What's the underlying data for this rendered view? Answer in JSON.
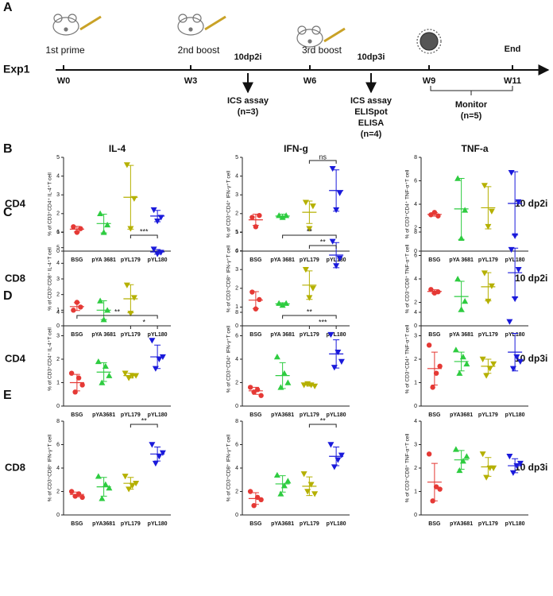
{
  "panels": [
    "A",
    "B",
    "C",
    "D",
    "E"
  ],
  "timeline": {
    "label": "Exp1",
    "weeks": [
      "W0",
      "W3",
      "W6",
      "W9",
      "W11"
    ],
    "doses": [
      "1st prime",
      "2nd boost",
      "3rd boost"
    ],
    "events": [
      "10dp2i",
      "10dp3i",
      "End"
    ],
    "assay1": [
      "ICS assay",
      "(n=3)"
    ],
    "assay2": [
      "ICS assay",
      "ELISpot",
      "ELISA",
      "(n=4)"
    ],
    "monitor": [
      "Monitor",
      "(n=5)"
    ]
  },
  "columns": [
    "IL-4",
    "IFN-g",
    "TNF-a"
  ],
  "rows": [
    {
      "label": "CD4",
      "time": "10 dp2i"
    },
    {
      "label": "CD8",
      "time": "10 dp2i"
    },
    {
      "label": "CD4",
      "time": "10 dp3i"
    },
    {
      "label": "CD8",
      "time": "10 dp3i"
    }
  ],
  "chart_data": [
    {
      "type": "dot",
      "ylabel": "% of CD3⁺CD4⁺ IL-4⁺T cell",
      "ylim": [
        0,
        5
      ],
      "yticks": [
        0,
        1,
        2,
        3,
        4,
        5
      ],
      "significance": [],
      "groups": [
        {
          "name": "BSG",
          "color": "#e53935",
          "marker": "circle",
          "values": [
            1.3,
            1.0,
            1.2
          ],
          "mean": 1.17,
          "sd": 0.15
        },
        {
          "name": "pYA 3681",
          "color": "#2ecc40",
          "marker": "up",
          "values": [
            2.0,
            1.0,
            1.4
          ],
          "mean": 1.47,
          "sd": 0.5
        },
        {
          "name": "pYL179",
          "color": "#b5b000",
          "marker": "down",
          "values": [
            4.6,
            1.2,
            2.8
          ],
          "mean": 2.87,
          "sd": 1.7
        },
        {
          "name": "pYL180",
          "color": "#1a1adb",
          "marker": "down",
          "values": [
            2.2,
            1.6,
            1.8
          ],
          "mean": 1.87,
          "sd": 0.3
        }
      ]
    },
    {
      "type": "dot",
      "ylabel": "% of CD3⁺CD4⁺ IFN-γ⁺T cell",
      "ylim": [
        0,
        5
      ],
      "yticks": [
        0,
        1,
        2,
        3,
        4,
        5
      ],
      "significance": [
        {
          "from": 2,
          "to": 3,
          "label": "ns"
        }
      ],
      "groups": [
        {
          "name": "BSG",
          "color": "#e53935",
          "marker": "circle",
          "values": [
            1.8,
            1.3,
            1.9
          ],
          "mean": 1.67,
          "sd": 0.3
        },
        {
          "name": "pYA 3681",
          "color": "#2ecc40",
          "marker": "up",
          "values": [
            1.9,
            1.8,
            1.9
          ],
          "mean": 1.87,
          "sd": 0.1
        },
        {
          "name": "pYL179",
          "color": "#b5b000",
          "marker": "down",
          "values": [
            2.6,
            1.2,
            2.4
          ],
          "mean": 2.07,
          "sd": 0.6
        },
        {
          "name": "pYL180",
          "color": "#1a1adb",
          "marker": "down",
          "values": [
            4.4,
            2.2,
            3.1
          ],
          "mean": 3.23,
          "sd": 1.1
        }
      ]
    },
    {
      "type": "dot",
      "ylabel": "% of CD3⁺CD4⁺ TNF-α⁺T cell",
      "ylim": [
        0,
        8
      ],
      "yticks": [
        0,
        2,
        4,
        6,
        8
      ],
      "significance": [],
      "groups": [
        {
          "name": "BSG",
          "color": "#e53935",
          "marker": "circle",
          "values": [
            3.1,
            3.3,
            3.0
          ],
          "mean": 3.13,
          "sd": 0.15
        },
        {
          "name": "pYA 3681",
          "color": "#2ecc40",
          "marker": "up",
          "values": [
            6.2,
            1.1,
            3.5
          ],
          "mean": 3.6,
          "sd": 2.6
        },
        {
          "name": "pYL179",
          "color": "#b5b000",
          "marker": "down",
          "values": [
            5.6,
            2.1,
            3.4
          ],
          "mean": 3.7,
          "sd": 1.8
        },
        {
          "name": "pYL180",
          "color": "#1a1adb",
          "marker": "down",
          "values": [
            6.7,
            1.3,
            4.2
          ],
          "mean": 4.07,
          "sd": 2.7
        }
      ]
    },
    {
      "type": "dot",
      "ylabel": "% of CD3⁺CD8⁺ IL-4⁺T cell",
      "ylim": [
        0,
        6
      ],
      "yticks": [
        0,
        1,
        2,
        3,
        4,
        5,
        6
      ],
      "significance": [
        {
          "from": 2,
          "to": 3,
          "label": "***"
        }
      ],
      "groups": [
        {
          "name": "BSG",
          "color": "#e53935",
          "marker": "circle",
          "values": [
            1.0,
            1.5,
            1.2
          ],
          "mean": 1.23,
          "sd": 0.25
        },
        {
          "name": "pYA 3681",
          "color": "#2ecc40",
          "marker": "up",
          "values": [
            1.6,
            0.4,
            1.0
          ],
          "mean": 1.0,
          "sd": 0.6
        },
        {
          "name": "pYL179",
          "color": "#b5b000",
          "marker": "down",
          "values": [
            2.6,
            0.8,
            1.8
          ],
          "mean": 1.73,
          "sd": 0.9
        },
        {
          "name": "pYL180",
          "color": "#1a1adb",
          "marker": "down",
          "values": [
            4.9,
            4.6,
            4.7
          ],
          "mean": 4.73,
          "sd": 0.15
        }
      ]
    },
    {
      "type": "dot",
      "ylabel": "% of CD3⁺CD8⁺ IFN-γ⁺T cell",
      "ylim": [
        0,
        5
      ],
      "yticks": [
        0,
        1,
        2,
        3,
        4,
        5
      ],
      "significance": [
        {
          "from": 1,
          "to": 3,
          "label": "**"
        },
        {
          "from": 2,
          "to": 3,
          "label": "**"
        }
      ],
      "groups": [
        {
          "name": "BSG",
          "color": "#e53935",
          "marker": "circle",
          "values": [
            1.8,
            0.9,
            1.4
          ],
          "mean": 1.37,
          "sd": 0.45
        },
        {
          "name": "pYA 3681",
          "color": "#2ecc40",
          "marker": "up",
          "values": [
            1.2,
            1.1,
            1.2
          ],
          "mean": 1.17,
          "sd": 0.06
        },
        {
          "name": "pYL179",
          "color": "#b5b000",
          "marker": "down",
          "values": [
            3.0,
            1.5,
            2.0
          ],
          "mean": 2.17,
          "sd": 0.76
        },
        {
          "name": "pYL180",
          "color": "#1a1adb",
          "marker": "down",
          "values": [
            4.5,
            3.2,
            3.6
          ],
          "mean": 3.77,
          "sd": 0.67
        }
      ]
    },
    {
      "type": "dot",
      "ylabel": "% of CD3⁺CD8⁺ TNF-α⁺T cell",
      "ylim": [
        0,
        8
      ],
      "yticks": [
        0,
        2,
        4,
        6,
        8
      ],
      "significance": [],
      "groups": [
        {
          "name": "BSG",
          "color": "#e53935",
          "marker": "circle",
          "values": [
            3.1,
            2.8,
            2.9
          ],
          "mean": 2.93,
          "sd": 0.15
        },
        {
          "name": "pYA 3681",
          "color": "#2ecc40",
          "marker": "up",
          "values": [
            4.0,
            1.4,
            2.1
          ],
          "mean": 2.5,
          "sd": 1.3
        },
        {
          "name": "pYL179",
          "color": "#b5b000",
          "marker": "down",
          "values": [
            4.5,
            2.1,
            3.4
          ],
          "mean": 3.33,
          "sd": 1.2
        },
        {
          "name": "pYL180",
          "color": "#1a1adb",
          "marker": "down",
          "values": [
            6.5,
            2.3,
            4.8
          ],
          "mean": 4.53,
          "sd": 2.1
        }
      ]
    },
    {
      "type": "dot",
      "ylabel": "% of CD3⁺CD4⁺ IL-4⁺T cell",
      "ylim": [
        0,
        4
      ],
      "yticks": [
        0,
        1,
        2,
        3,
        4
      ],
      "significance": [
        {
          "from": 0,
          "to": 3,
          "label": "**"
        },
        {
          "from": 2,
          "to": 3,
          "label": "*"
        }
      ],
      "groups": [
        {
          "name": "BSG",
          "color": "#e53935",
          "marker": "circle",
          "values": [
            1.4,
            0.6,
            1.2,
            0.9
          ],
          "mean": 1.0,
          "sd": 0.35
        },
        {
          "name": "pYA3681",
          "color": "#2ecc40",
          "marker": "up",
          "values": [
            1.9,
            1.0,
            1.7,
            1.3
          ],
          "mean": 1.45,
          "sd": 0.4
        },
        {
          "name": "pYL179",
          "color": "#b5b000",
          "marker": "down",
          "values": [
            1.4,
            1.2,
            1.3,
            1.3
          ],
          "mean": 1.3,
          "sd": 0.1
        },
        {
          "name": "pYL180",
          "color": "#1a1adb",
          "marker": "down",
          "values": [
            2.8,
            1.6,
            2.0,
            2.1
          ],
          "mean": 2.1,
          "sd": 0.5
        }
      ]
    },
    {
      "type": "dot",
      "ylabel": "% of CD3⁺CD4⁺ IFN-γ⁺T cell",
      "ylim": [
        0,
        8
      ],
      "yticks": [
        0,
        2,
        4,
        6,
        8
      ],
      "significance": [
        {
          "from": 1,
          "to": 3,
          "label": "**"
        },
        {
          "from": 2,
          "to": 3,
          "label": "***"
        }
      ],
      "groups": [
        {
          "name": "BSG",
          "color": "#e53935",
          "marker": "circle",
          "values": [
            1.6,
            1.2,
            1.4,
            0.9
          ],
          "mean": 1.3,
          "sd": 0.3
        },
        {
          "name": "pYA3681",
          "color": "#2ecc40",
          "marker": "up",
          "values": [
            4.2,
            1.6,
            2.8,
            2.0
          ],
          "mean": 2.6,
          "sd": 1.1
        },
        {
          "name": "pYL179",
          "color": "#b5b000",
          "marker": "down",
          "values": [
            1.8,
            1.9,
            1.8,
            1.7
          ],
          "mean": 1.8,
          "sd": 0.1
        },
        {
          "name": "pYL180",
          "color": "#1a1adb",
          "marker": "down",
          "values": [
            6.1,
            3.3,
            4.6,
            3.8
          ],
          "mean": 4.45,
          "sd": 1.2
        }
      ]
    },
    {
      "type": "dot",
      "ylabel": "% of CD3⁺CD4⁺ TNF-α⁺T cell",
      "ylim": [
        0,
        4
      ],
      "yticks": [
        0,
        1,
        2,
        3,
        4
      ],
      "significance": [],
      "groups": [
        {
          "name": "BSG",
          "color": "#e53935",
          "marker": "circle",
          "values": [
            2.6,
            0.8,
            1.4,
            1.7
          ],
          "mean": 1.6,
          "sd": 0.7
        },
        {
          "name": "pYA3681",
          "color": "#2ecc40",
          "marker": "up",
          "values": [
            2.4,
            1.4,
            2.1,
            1.8
          ],
          "mean": 1.9,
          "sd": 0.4
        },
        {
          "name": "pYL179",
          "color": "#b5b000",
          "marker": "down",
          "values": [
            2.0,
            1.3,
            1.6,
            1.8
          ],
          "mean": 1.7,
          "sd": 0.3
        },
        {
          "name": "pYL180",
          "color": "#1a1adb",
          "marker": "down",
          "values": [
            3.6,
            1.6,
            2.1,
            1.9
          ],
          "mean": 2.3,
          "sd": 0.8
        }
      ]
    },
    {
      "type": "dot",
      "ylabel": "% of CD3⁺CD8⁺ IFN-γ⁺T cell",
      "ylim": [
        0,
        8
      ],
      "yticks": [
        0,
        2,
        4,
        6,
        8
      ],
      "significance": [
        {
          "from": 2,
          "to": 3,
          "label": "**"
        }
      ],
      "groups": [
        {
          "name": "BSG",
          "color": "#e53935",
          "marker": "circle",
          "values": [
            2.0,
            1.6,
            1.8,
            1.5
          ],
          "mean": 1.75,
          "sd": 0.2
        },
        {
          "name": "pYA3681",
          "color": "#2ecc40",
          "marker": "up",
          "values": [
            3.3,
            1.4,
            2.6,
            2.3
          ],
          "mean": 2.4,
          "sd": 0.8
        },
        {
          "name": "pYL179",
          "color": "#b5b000",
          "marker": "down",
          "values": [
            3.3,
            2.2,
            2.5,
            2.7
          ],
          "mean": 2.7,
          "sd": 0.5
        },
        {
          "name": "pYL180",
          "color": "#1a1adb",
          "marker": "down",
          "values": [
            6.0,
            4.4,
            5.0,
            5.3
          ],
          "mean": 5.2,
          "sd": 0.6
        }
      ]
    },
    {
      "type": "dot",
      "ylabel": "% of CD3⁺CD8⁺ IFN-γ⁺T cell",
      "ylim": [
        0,
        8
      ],
      "yticks": [
        0,
        2,
        4,
        6,
        8
      ],
      "significance": [
        {
          "from": 2,
          "to": 3,
          "label": "**"
        }
      ],
      "groups": [
        {
          "name": "BSG",
          "color": "#e53935",
          "marker": "circle",
          "values": [
            2.0,
            0.8,
            1.5,
            1.3
          ],
          "mean": 1.4,
          "sd": 0.5
        },
        {
          "name": "pYA3681",
          "color": "#2ecc40",
          "marker": "up",
          "values": [
            3.4,
            1.8,
            2.5,
            2.9
          ],
          "mean": 2.65,
          "sd": 0.7
        },
        {
          "name": "pYL179",
          "color": "#b5b000",
          "marker": "down",
          "values": [
            3.5,
            2.0,
            2.6,
            1.8
          ],
          "mean": 2.45,
          "sd": 0.8
        },
        {
          "name": "pYL180",
          "color": "#1a1adb",
          "marker": "down",
          "values": [
            6.0,
            4.1,
            4.7,
            5.1
          ],
          "mean": 5.0,
          "sd": 0.8
        }
      ]
    },
    {
      "type": "dot",
      "ylabel": "% of CD3⁺CD8⁺ TNF-α⁺T cell",
      "ylim": [
        0,
        4
      ],
      "yticks": [
        0,
        1,
        2,
        3,
        4
      ],
      "significance": [],
      "groups": [
        {
          "name": "BSG",
          "color": "#e53935",
          "marker": "circle",
          "values": [
            2.6,
            0.6,
            1.2,
            1.1
          ],
          "mean": 1.4,
          "sd": 0.8
        },
        {
          "name": "pYA3681",
          "color": "#2ecc40",
          "marker": "up",
          "values": [
            2.8,
            1.9,
            2.3,
            2.5
          ],
          "mean": 2.35,
          "sd": 0.4
        },
        {
          "name": "pYL179",
          "color": "#b5b000",
          "marker": "down",
          "values": [
            2.6,
            1.6,
            2.0,
            2.0
          ],
          "mean": 2.05,
          "sd": 0.4
        },
        {
          "name": "pYL180",
          "color": "#1a1adb",
          "marker": "down",
          "values": [
            2.5,
            1.8,
            2.1,
            2.2
          ],
          "mean": 2.1,
          "sd": 0.3
        }
      ]
    }
  ]
}
